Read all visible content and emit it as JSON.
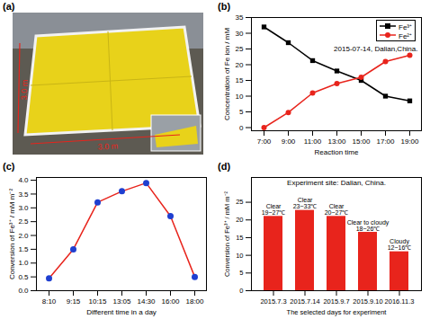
{
  "panel_labels": [
    "(a)",
    "(b)",
    "(c)",
    "(d)"
  ],
  "photo": {
    "annotations": [
      "3.0 m",
      "3.0 m"
    ]
  },
  "chart_data": [
    {
      "type": "line",
      "title": "2015-07-14, Dalian,China.",
      "x_label": "Reaction time",
      "y_label": "Concentration of Fe ion / mM",
      "categories": [
        "7:00",
        "9:00",
        "11:00",
        "13:00",
        "15:00",
        "17:00",
        "19:00"
      ],
      "series": [
        {
          "name": "Fe³⁺",
          "color": "#000000",
          "marker": "square",
          "values": [
            32,
            27,
            21.3,
            18,
            15,
            10,
            8.5
          ]
        },
        {
          "name": "Fe²⁺",
          "color": "#e8241c",
          "marker": "circle",
          "values": [
            0,
            4.8,
            11,
            14,
            16,
            21,
            23
          ]
        }
      ],
      "ylim": [
        -1,
        35
      ],
      "yticks": [
        0,
        5,
        10,
        15,
        20,
        25,
        30,
        35
      ],
      "legend": "top-right"
    },
    {
      "type": "line",
      "x_label": "Different time in a day",
      "y_label": "Conversion of Fe³⁺ / mM m⁻²",
      "categories": [
        "8:10",
        "9:15",
        "10:15",
        "13:05",
        "14:30",
        "16:00",
        "18:00"
      ],
      "values": [
        0.45,
        1.5,
        3.2,
        3.6,
        3.9,
        2.7,
        0.5
      ],
      "color": "#e8241c",
      "marker": "circle",
      "ylim": [
        0,
        4.1
      ],
      "yticks": [
        {
          "value": 0,
          "label": "0.0"
        },
        {
          "value": 0.5,
          "label": "0.5"
        },
        {
          "value": 1,
          "label": "1.0"
        },
        {
          "value": 1.5,
          "label": "1.5"
        },
        {
          "value": 2,
          "label": "2.0"
        },
        {
          "value": 2.5,
          "label": "2.5"
        },
        {
          "value": 3,
          "label": "3.0"
        },
        {
          "value": 3.5,
          "label": "3.5"
        },
        {
          "value": 4,
          "label": "4.0"
        }
      ]
    },
    {
      "type": "bar",
      "title": "Experiment site: Dalian, China.",
      "x_label": "The selected days for experiment",
      "y_label": "Conversion of Fe³⁺ / mM m⁻²",
      "categories": [
        "2015.7.3",
        "2015.7.14",
        "2015.9.7",
        "2015.9.10",
        "2016.11.3"
      ],
      "values": [
        21,
        22.7,
        21,
        16.5,
        11
      ],
      "annotations": [
        "Clear\n19~27℃",
        "Clear\n23~33℃",
        "Clear\n20~27℃",
        "Clear to cloudy\n18~26℃",
        "Cloudy\n12~16℃"
      ],
      "color": "#e8241c",
      "ylim": [
        0,
        32
      ],
      "yticks": [
        0,
        5,
        10,
        15,
        20,
        25
      ]
    }
  ]
}
